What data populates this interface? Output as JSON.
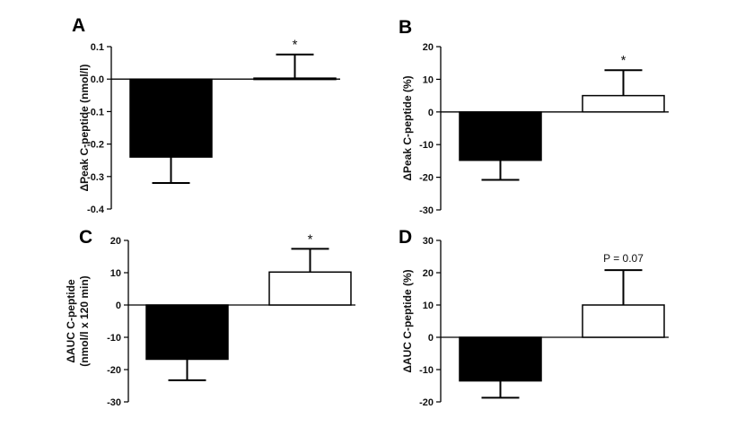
{
  "chart_data": [
    {
      "panel": "A",
      "type": "bar",
      "ylabel": "ΔPeak C-peptide (nmol/l)",
      "ylim": [
        -0.4,
        0.1
      ],
      "yticks": [
        "0.1",
        "0.0",
        "-0.1",
        "-0.2",
        "-0.3",
        "-0.4"
      ],
      "bars": [
        {
          "value": -0.24,
          "error": 0.08,
          "fill": "#000000",
          "annotation": ""
        },
        {
          "value": 0.003,
          "error": 0.073,
          "fill": "#ffffff",
          "annotation": "*"
        }
      ]
    },
    {
      "panel": "B",
      "type": "bar",
      "ylabel": "ΔPeak C-peptide (%)",
      "ylim": [
        -30,
        20
      ],
      "yticks": [
        "20",
        "10",
        "0",
        "-10",
        "-20",
        "-30"
      ],
      "bars": [
        {
          "value": -14.8,
          "error": 6.0,
          "fill": "#000000",
          "annotation": ""
        },
        {
          "value": 5.0,
          "error": 7.8,
          "fill": "#ffffff",
          "annotation": "*"
        }
      ]
    },
    {
      "panel": "C",
      "type": "bar",
      "ylabel": "ΔAUC C-peptide",
      "ylabel2": "(nmol/l x 120 min)",
      "ylim": [
        -30,
        20
      ],
      "yticks": [
        "20",
        "10",
        "0",
        "-10",
        "-20",
        "-30"
      ],
      "bars": [
        {
          "value": -16.8,
          "error": 6.5,
          "fill": "#000000",
          "annotation": ""
        },
        {
          "value": 10.2,
          "error": 7.2,
          "fill": "#ffffff",
          "annotation": "*"
        }
      ]
    },
    {
      "panel": "D",
      "type": "bar",
      "ylabel": "ΔAUC C-peptide (%)",
      "ylim": [
        -20,
        30
      ],
      "yticks": [
        "30",
        "20",
        "10",
        "0",
        "-10",
        "-20"
      ],
      "bars": [
        {
          "value": -13.5,
          "error": 5.2,
          "fill": "#000000",
          "annotation": ""
        },
        {
          "value": 10.0,
          "error": 10.8,
          "fill": "#ffffff",
          "annotation": "P = 0.07"
        }
      ]
    }
  ]
}
